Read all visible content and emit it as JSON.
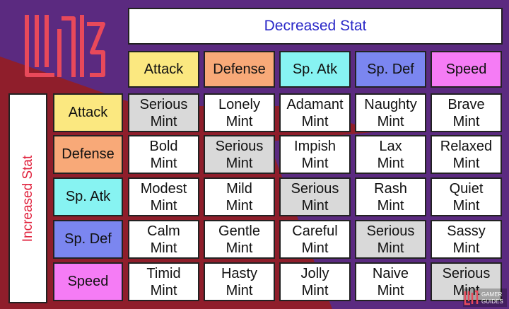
{
  "decreased_label": "Decreased Stat",
  "increased_label": "Increased Stat",
  "stats": [
    "Attack",
    "Defense",
    "Sp. Atk",
    "Sp. Def",
    "Speed"
  ],
  "stat_colors": [
    "#fbe880",
    "#f8a978",
    "#87f3f2",
    "#7b86f0",
    "#f57cf5"
  ],
  "table": [
    [
      [
        "Serious",
        "Mint"
      ],
      [
        "Lonely",
        "Mint"
      ],
      [
        "Adamant",
        "Mint"
      ],
      [
        "Naughty",
        "Mint"
      ],
      [
        "Brave",
        "Mint"
      ]
    ],
    [
      [
        "Bold",
        "Mint"
      ],
      [
        "Serious",
        "Mint"
      ],
      [
        "Impish",
        "Mint"
      ],
      [
        "Lax",
        "Mint"
      ],
      [
        "Relaxed",
        "Mint"
      ]
    ],
    [
      [
        "Modest",
        "Mint"
      ],
      [
        "Mild",
        "Mint"
      ],
      [
        "Serious",
        "Mint"
      ],
      [
        "Rash",
        "Mint"
      ],
      [
        "Quiet",
        "Mint"
      ]
    ],
    [
      [
        "Calm",
        "Mint"
      ],
      [
        "Gentle",
        "Mint"
      ],
      [
        "Careful",
        "Mint"
      ],
      [
        "Serious",
        "Mint"
      ],
      [
        "Sassy",
        "Mint"
      ]
    ],
    [
      [
        "Timid",
        "Mint"
      ],
      [
        "Hasty",
        "Mint"
      ],
      [
        "Jolly",
        "Mint"
      ],
      [
        "Naive",
        "Mint"
      ],
      [
        "Serious",
        "Mint"
      ]
    ]
  ],
  "watermark": {
    "line1": "GAMER",
    "line2": "GUIDES"
  },
  "colors": {
    "maroon": "#8f1e2b",
    "purple": "#5b2a80",
    "logo": "#e8495a",
    "highlight": "#d9d9d9"
  }
}
